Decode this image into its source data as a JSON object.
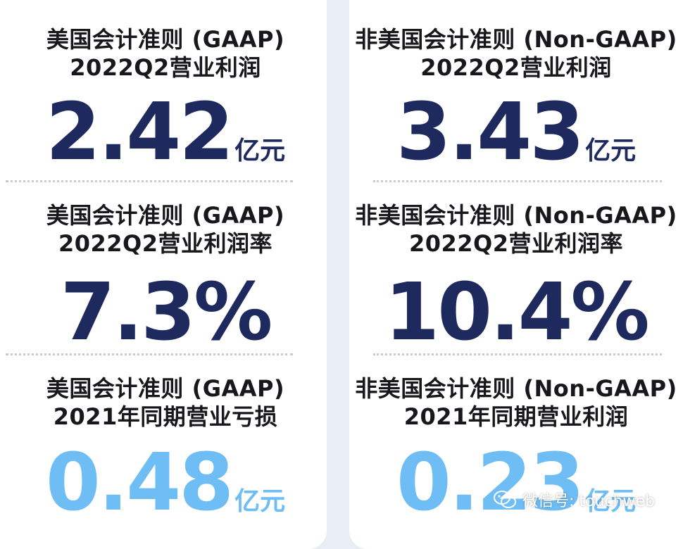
{
  "colors": {
    "dark_value": "#1e2a5e",
    "light_value": "#6ebdf5",
    "label": "#17171c",
    "background": "#e9eef6"
  },
  "left": {
    "m1": {
      "label1": "美国会计准则 (GAAP)",
      "label2": "2022Q2营业利润",
      "value": "2.42",
      "unit": "亿元"
    },
    "m2": {
      "label1": "美国会计准则 (GAAP)",
      "label2": "2022Q2营业利润率",
      "value": "7.3%",
      "unit": ""
    },
    "m3": {
      "label1": "美国会计准则 (GAAP)",
      "label2": "2021年同期营业亏损",
      "value": "0.48",
      "unit": "亿元"
    }
  },
  "right": {
    "m1": {
      "label1": "非美国会计准则 (Non-GAAP)",
      "label2": "2022Q2营业利润",
      "value": "3.43",
      "unit": "亿元"
    },
    "m2": {
      "label1": "非美国会计准则 (Non-GAAP)",
      "label2": "2022Q2营业利润率",
      "value": "10.4%",
      "unit": ""
    },
    "m3": {
      "label1": "非美国会计准则 (Non-GAAP)",
      "label2": "2021年同期营业利润",
      "value": "0.23",
      "unit": "亿元"
    }
  },
  "watermark": {
    "icon": "wechat-icon",
    "text": "微信号: touchweb"
  }
}
